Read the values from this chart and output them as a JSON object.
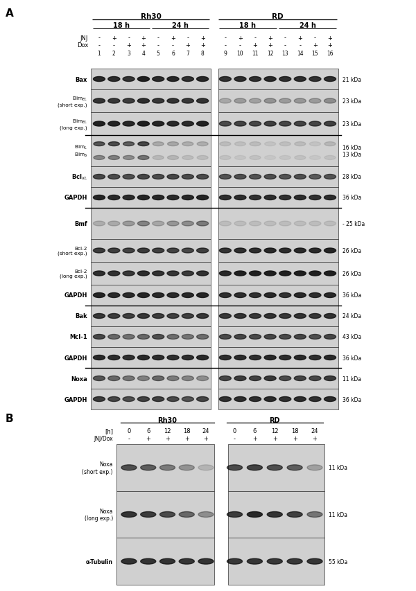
{
  "fig_width": 6.0,
  "fig_height": 8.54,
  "bg_color": "#ffffff",
  "panel_A": {
    "cell_lines": [
      "Rh30",
      "RD"
    ],
    "time_groups": [
      "18 h",
      "24 h",
      "18 h",
      "24 h"
    ],
    "JNJ_vals_rh": [
      "-",
      "+",
      "-",
      "+",
      "-",
      "+",
      "-",
      "+"
    ],
    "Dox_vals_rh": [
      "-",
      "-",
      "+",
      "+",
      "-",
      "-",
      "+",
      "+"
    ],
    "JNJ_vals_rd": [
      "-",
      "+",
      "-",
      "+",
      "-",
      "+",
      "-",
      "+"
    ],
    "Dox_vals_rd": [
      "-",
      "-",
      "+",
      "+",
      "-",
      "-",
      "+",
      "+"
    ],
    "lane_nums": [
      "1",
      "2",
      "3",
      "4",
      "5",
      "6",
      "7",
      "8",
      "9",
      "10",
      "11",
      "12",
      "13",
      "14",
      "15",
      "16"
    ],
    "row_labels": [
      "Bax",
      "Bim$_{EL}$\n(short exp.)",
      "Bim$_{EL}$\n(long exp.)",
      "Bim$_L$\nBim$_S$",
      "Bcl$_{XL}$",
      "GAPDH",
      "Bmf",
      "Bcl-2\n(short exp.)",
      "Bcl-2\n(long exp.)",
      "GAPDH",
      "Bak",
      "Mcl-1",
      "GAPDH",
      "Noxa",
      "GAPDH"
    ],
    "kda_labels": [
      "21 kDa",
      "23 kDa",
      "23 kDa",
      "16 kDa\n13 kDa",
      "28 kDa",
      "36 kDa",
      "- 25 kDa",
      "26 kDa",
      "26 kDa",
      "36 kDa",
      "24 kDa",
      "43 kDa",
      "36 kDa",
      "11 kDa",
      "36 kDa"
    ],
    "row_heights_rel": [
      1.0,
      1.1,
      1.1,
      1.5,
      1.0,
      1.0,
      1.5,
      1.1,
      1.1,
      1.0,
      1.0,
      1.0,
      1.0,
      1.0,
      1.0
    ],
    "sep_after_rows": [
      2,
      5,
      9,
      12
    ],
    "bands_rh": [
      [
        0.88,
        0.85,
        0.82,
        0.92,
        0.86,
        0.88,
        0.84,
        0.88
      ],
      [
        0.82,
        0.8,
        0.78,
        0.85,
        0.8,
        0.82,
        0.8,
        0.82
      ],
      [
        0.92,
        0.9,
        0.88,
        0.93,
        0.9,
        0.88,
        0.87,
        0.91
      ],
      [
        0.65,
        0.7,
        0.6,
        0.72,
        0.2,
        0.22,
        0.18,
        0.18
      ],
      [
        0.72,
        0.7,
        0.68,
        0.72,
        0.7,
        0.72,
        0.7,
        0.7
      ],
      [
        0.9,
        0.88,
        0.87,
        0.9,
        0.88,
        0.87,
        0.88,
        0.9
      ],
      [
        0.18,
        0.2,
        0.28,
        0.4,
        0.22,
        0.3,
        0.35,
        0.45
      ],
      [
        0.78,
        0.76,
        0.74,
        0.78,
        0.76,
        0.74,
        0.72,
        0.76
      ],
      [
        0.85,
        0.83,
        0.8,
        0.86,
        0.83,
        0.81,
        0.79,
        0.83
      ],
      [
        0.9,
        0.88,
        0.87,
        0.9,
        0.88,
        0.87,
        0.88,
        0.9
      ],
      [
        0.8,
        0.78,
        0.76,
        0.8,
        0.78,
        0.76,
        0.76,
        0.8
      ],
      [
        0.72,
        0.55,
        0.5,
        0.55,
        0.68,
        0.52,
        0.48,
        0.52
      ],
      [
        0.88,
        0.86,
        0.85,
        0.88,
        0.86,
        0.85,
        0.86,
        0.88
      ],
      [
        0.65,
        0.55,
        0.48,
        0.42,
        0.55,
        0.45,
        0.4,
        0.35
      ],
      [
        0.78,
        0.72,
        0.68,
        0.74,
        0.76,
        0.7,
        0.65,
        0.72
      ]
    ],
    "bands_rd": [
      [
        0.82,
        0.85,
        0.83,
        0.87,
        0.83,
        0.85,
        0.82,
        0.85
      ],
      [
        0.22,
        0.28,
        0.25,
        0.32,
        0.28,
        0.3,
        0.28,
        0.35
      ],
      [
        0.7,
        0.74,
        0.72,
        0.76,
        0.72,
        0.74,
        0.72,
        0.76
      ],
      [
        0.12,
        0.1,
        0.12,
        0.08,
        0.1,
        0.12,
        0.08,
        0.15
      ],
      [
        0.65,
        0.68,
        0.65,
        0.68,
        0.65,
        0.68,
        0.62,
        0.65
      ],
      [
        0.85,
        0.86,
        0.84,
        0.86,
        0.84,
        0.86,
        0.84,
        0.86
      ],
      [
        0.1,
        0.1,
        0.1,
        0.1,
        0.1,
        0.1,
        0.1,
        0.1
      ],
      [
        0.82,
        0.85,
        0.85,
        0.88,
        0.86,
        0.88,
        0.87,
        0.9
      ],
      [
        0.88,
        0.92,
        0.92,
        0.95,
        0.92,
        0.95,
        0.93,
        0.96
      ],
      [
        0.85,
        0.86,
        0.84,
        0.88,
        0.84,
        0.88,
        0.85,
        0.88
      ],
      [
        0.8,
        0.82,
        0.8,
        0.83,
        0.8,
        0.82,
        0.8,
        0.83
      ],
      [
        0.7,
        0.73,
        0.7,
        0.73,
        0.7,
        0.73,
        0.68,
        0.72
      ],
      [
        0.86,
        0.87,
        0.85,
        0.88,
        0.86,
        0.88,
        0.85,
        0.88
      ],
      [
        0.72,
        0.78,
        0.75,
        0.8,
        0.7,
        0.74,
        0.72,
        0.78
      ],
      [
        0.83,
        0.85,
        0.84,
        0.86,
        0.84,
        0.86,
        0.84,
        0.86
      ]
    ],
    "bimS_rh": [
      0.38,
      0.42,
      0.35,
      0.48,
      0.12,
      0.14,
      0.1,
      0.1
    ],
    "bimS_rd": [
      0.08,
      0.06,
      0.08,
      0.05,
      0.06,
      0.08,
      0.05,
      0.08
    ]
  },
  "panel_B": {
    "cell_lines": [
      "Rh30",
      "RD"
    ],
    "h_vals": [
      "0",
      "6",
      "12",
      "18",
      "24"
    ],
    "jnj_dox_rh": [
      "-",
      "+",
      "+",
      "+",
      "+"
    ],
    "jnj_dox_rd": [
      "-",
      "+",
      "+",
      "+",
      "+"
    ],
    "row_labels": [
      "Noxa\n(short exp.)",
      "Noxa\n(long exp.)",
      "α-Tubulin"
    ],
    "kda_labels": [
      "11 kDa",
      "11 kDa",
      "55 kDa"
    ],
    "bands_rh": [
      [
        0.68,
        0.6,
        0.45,
        0.32,
        0.15
      ],
      [
        0.82,
        0.78,
        0.7,
        0.55,
        0.35
      ],
      [
        0.83,
        0.82,
        0.82,
        0.81,
        0.82
      ]
    ],
    "bands_rd": [
      [
        0.7,
        0.75,
        0.68,
        0.6,
        0.25
      ],
      [
        0.78,
        0.88,
        0.82,
        0.76,
        0.48
      ],
      [
        0.8,
        0.81,
        0.8,
        0.8,
        0.81
      ]
    ]
  }
}
